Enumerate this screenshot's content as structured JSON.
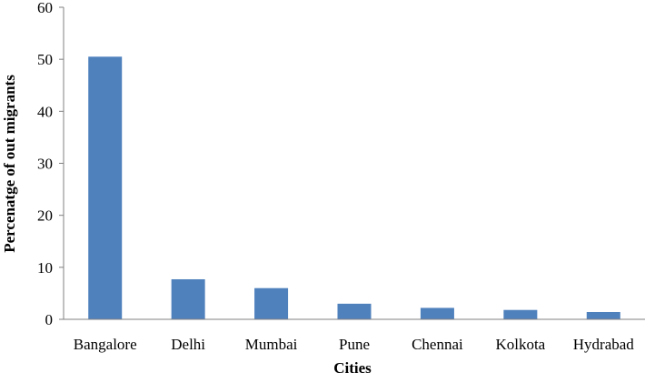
{
  "chart_data": {
    "type": "bar",
    "title": "",
    "xlabel": "Cities",
    "ylabel": "Percenatge of out migrants",
    "categories": [
      "Bangalore",
      "Delhi",
      "Mumbai",
      "Pune",
      "Chennai",
      "Kolkota",
      "Hydrabad"
    ],
    "values": [
      50.5,
      7.7,
      6.0,
      3.0,
      2.2,
      1.8,
      1.4
    ],
    "ylim": [
      0,
      60
    ],
    "yticks": [
      "0",
      "10",
      "20",
      "30",
      "40",
      "50",
      "60"
    ],
    "grid": false,
    "legend": "none",
    "bar_color": "#4f81bd"
  }
}
